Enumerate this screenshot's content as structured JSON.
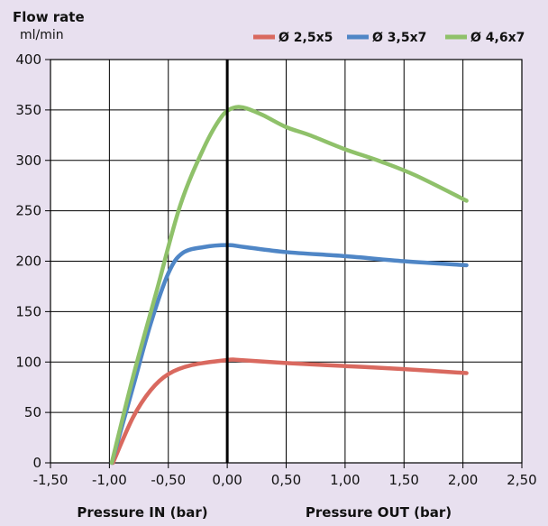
{
  "chart_data": {
    "type": "line",
    "ytitle": "Flow rate",
    "yunit": "ml/min",
    "xlabels": [
      "Pressure IN (bar)",
      "Pressure OUT (bar)"
    ],
    "xlim": [
      -1.5,
      2.5
    ],
    "ylim": [
      0,
      400
    ],
    "xticks": [
      "-1,50",
      "-1,00",
      "-0,50",
      "0,00",
      "0,50",
      "1,00",
      "1,50",
      "2,00",
      "2,50"
    ],
    "yticks": [
      "0",
      "50",
      "100",
      "150",
      "200",
      "250",
      "300",
      "350",
      "400"
    ],
    "xtick_values": [
      -1.5,
      -1.0,
      -0.5,
      0.0,
      0.5,
      1.0,
      1.5,
      2.0,
      2.5
    ],
    "ytick_values": [
      0,
      50,
      100,
      150,
      200,
      250,
      300,
      350,
      400
    ],
    "grid": true,
    "legend_position": "top-right",
    "series": [
      {
        "name": "Ø 2,5x5",
        "color": "#d9695f",
        "points": [
          [
            -0.97,
            0
          ],
          [
            -0.8,
            45
          ],
          [
            -0.65,
            72
          ],
          [
            -0.5,
            88
          ],
          [
            -0.3,
            97
          ],
          [
            0.0,
            102
          ],
          [
            0.1,
            102
          ],
          [
            0.5,
            99
          ],
          [
            1.0,
            96
          ],
          [
            1.5,
            93
          ],
          [
            2.03,
            89
          ]
        ]
      },
      {
        "name": "Ø 3,5x7",
        "color": "#4f86c6",
        "points": [
          [
            -0.98,
            0
          ],
          [
            -0.8,
            75
          ],
          [
            -0.65,
            138
          ],
          [
            -0.5,
            188
          ],
          [
            -0.38,
            208
          ],
          [
            -0.2,
            214
          ],
          [
            0.0,
            216
          ],
          [
            0.15,
            214
          ],
          [
            0.5,
            209
          ],
          [
            1.0,
            205
          ],
          [
            1.5,
            200
          ],
          [
            2.03,
            196
          ]
        ]
      },
      {
        "name": "Ø 4,6x7",
        "color": "#8fc16a",
        "points": [
          [
            -0.98,
            0
          ],
          [
            -0.8,
            85
          ],
          [
            -0.6,
            170
          ],
          [
            -0.4,
            255
          ],
          [
            -0.2,
            312
          ],
          [
            -0.05,
            343
          ],
          [
            0.05,
            352
          ],
          [
            0.15,
            352
          ],
          [
            0.3,
            345
          ],
          [
            0.5,
            333
          ],
          [
            0.7,
            325
          ],
          [
            1.0,
            311
          ],
          [
            1.3,
            299
          ],
          [
            1.6,
            285
          ],
          [
            2.03,
            260
          ]
        ]
      }
    ]
  }
}
